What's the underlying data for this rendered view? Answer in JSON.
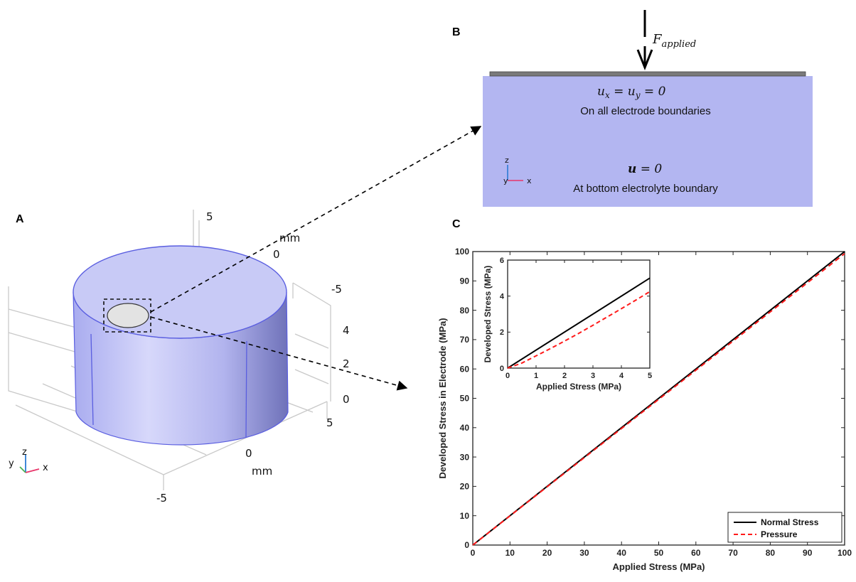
{
  "panels": {
    "a": {
      "label": "A",
      "axis_unit": "mm",
      "z_ticks": [
        "0",
        "2",
        "4"
      ],
      "y_ticks": [
        "-5",
        "0",
        "5"
      ],
      "x_ticks": [
        "-5",
        "0",
        "5"
      ],
      "triad": {
        "x": "x",
        "y": "y",
        "z": "z"
      },
      "colors": {
        "cylinder": "#c6c8f4",
        "edge": "#5a5ee0",
        "electrode": "#e3e3e3"
      }
    },
    "b": {
      "label": "B",
      "force_label": "F",
      "force_subscript": "applied",
      "bc_top_equation": "u",
      "bc_top_sub_x": "x",
      "bc_top_eq_mid": " = u",
      "bc_top_sub_y": "y",
      "bc_top_eq_end": " = 0",
      "bc_top_text": "On all electrode boundaries",
      "bc_bottom_equation_bold": "u",
      "bc_bottom_equation_rest": " = 0",
      "bc_bottom_text": "At bottom electrolyte boundary",
      "triad": {
        "x": "x",
        "y": "y",
        "z": "z"
      },
      "colors": {
        "domain": "#b3b6f1",
        "electrode_bar": "#777777"
      }
    }
  },
  "chart_data": [
    {
      "panel_label": "C",
      "type": "line",
      "xlabel": "Applied Stress (MPa)",
      "ylabel": "Developed Stress in Electrode (MPa)",
      "xlim": [
        0,
        100
      ],
      "ylim": [
        0,
        100
      ],
      "x_ticks": [
        0,
        10,
        20,
        30,
        40,
        50,
        60,
        70,
        80,
        90,
        100
      ],
      "y_ticks": [
        0,
        10,
        20,
        30,
        40,
        50,
        60,
        70,
        80,
        90,
        100
      ],
      "legend_position": "bottom-right",
      "series": [
        {
          "name": "Normal Stress",
          "color": "#000000",
          "dash": "solid",
          "x": [
            0,
            100
          ],
          "y": [
            0,
            100
          ]
        },
        {
          "name": "Pressure",
          "color": "#ff1a1a",
          "dash": "dashed",
          "x": [
            0,
            100
          ],
          "y": [
            0,
            99.3
          ]
        }
      ]
    },
    {
      "type": "line",
      "inset": true,
      "xlabel": "Applied Stress (MPa)",
      "ylabel": "Developed Stress (MPa)",
      "xlim": [
        0,
        5
      ],
      "ylim": [
        0,
        6
      ],
      "x_ticks": [
        0,
        1,
        2,
        3,
        4,
        5
      ],
      "y_ticks": [
        0,
        2,
        4,
        6
      ],
      "series": [
        {
          "name": "Normal Stress",
          "color": "#000000",
          "dash": "solid",
          "x": [
            0,
            5
          ],
          "y": [
            0,
            5.0
          ]
        },
        {
          "name": "Pressure",
          "color": "#ff1a1a",
          "dash": "dashed",
          "x": [
            0,
            0.5,
            1,
            1.5,
            2,
            2.5,
            3,
            3.5,
            4,
            4.5,
            5
          ],
          "y": [
            0,
            0.28,
            0.68,
            1.08,
            1.5,
            1.93,
            2.38,
            2.84,
            3.3,
            3.77,
            4.25
          ]
        }
      ]
    }
  ]
}
